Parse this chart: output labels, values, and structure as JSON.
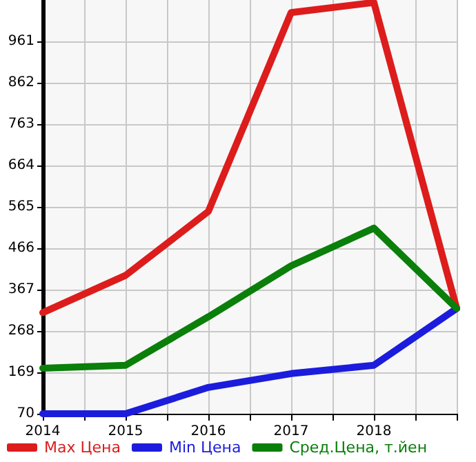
{
  "chart_data": {
    "type": "line",
    "x": [
      2014,
      2015,
      2016,
      2017,
      2018,
      2019
    ],
    "series": [
      {
        "name": "Max Цена",
        "color": "#dd1c1c",
        "values": [
          312,
          401,
          554,
          1030,
          1054,
          322
        ]
      },
      {
        "name": "Min Цена",
        "color": "#1c1cdd",
        "values": [
          70,
          70,
          133,
          166,
          186,
          322
        ]
      },
      {
        "name": "Сред.Цена, т.йен",
        "color": "#0a7f0a",
        "values": [
          179,
          186,
          302,
          424,
          514,
          322
        ]
      }
    ],
    "xlim": [
      2014,
      2019
    ],
    "xticks": [
      2014,
      {
        "value": 2014.5,
        "label": null
      },
      2015,
      {
        "value": 2015.5,
        "label": null
      },
      2016,
      {
        "value": 2016.5,
        "label": null
      },
      2017,
      {
        "value": 2017.5,
        "label": null
      },
      2018,
      {
        "value": 2018.5,
        "label": null
      },
      {
        "value": 2019,
        "label": null
      }
    ],
    "ylim": [
      70,
      1060
    ],
    "yticks": [
      70,
      169,
      268,
      367,
      466,
      565,
      664,
      763,
      862,
      961
    ],
    "grid": true,
    "legend": "bottom",
    "marker": "none",
    "line_style": "solid"
  }
}
